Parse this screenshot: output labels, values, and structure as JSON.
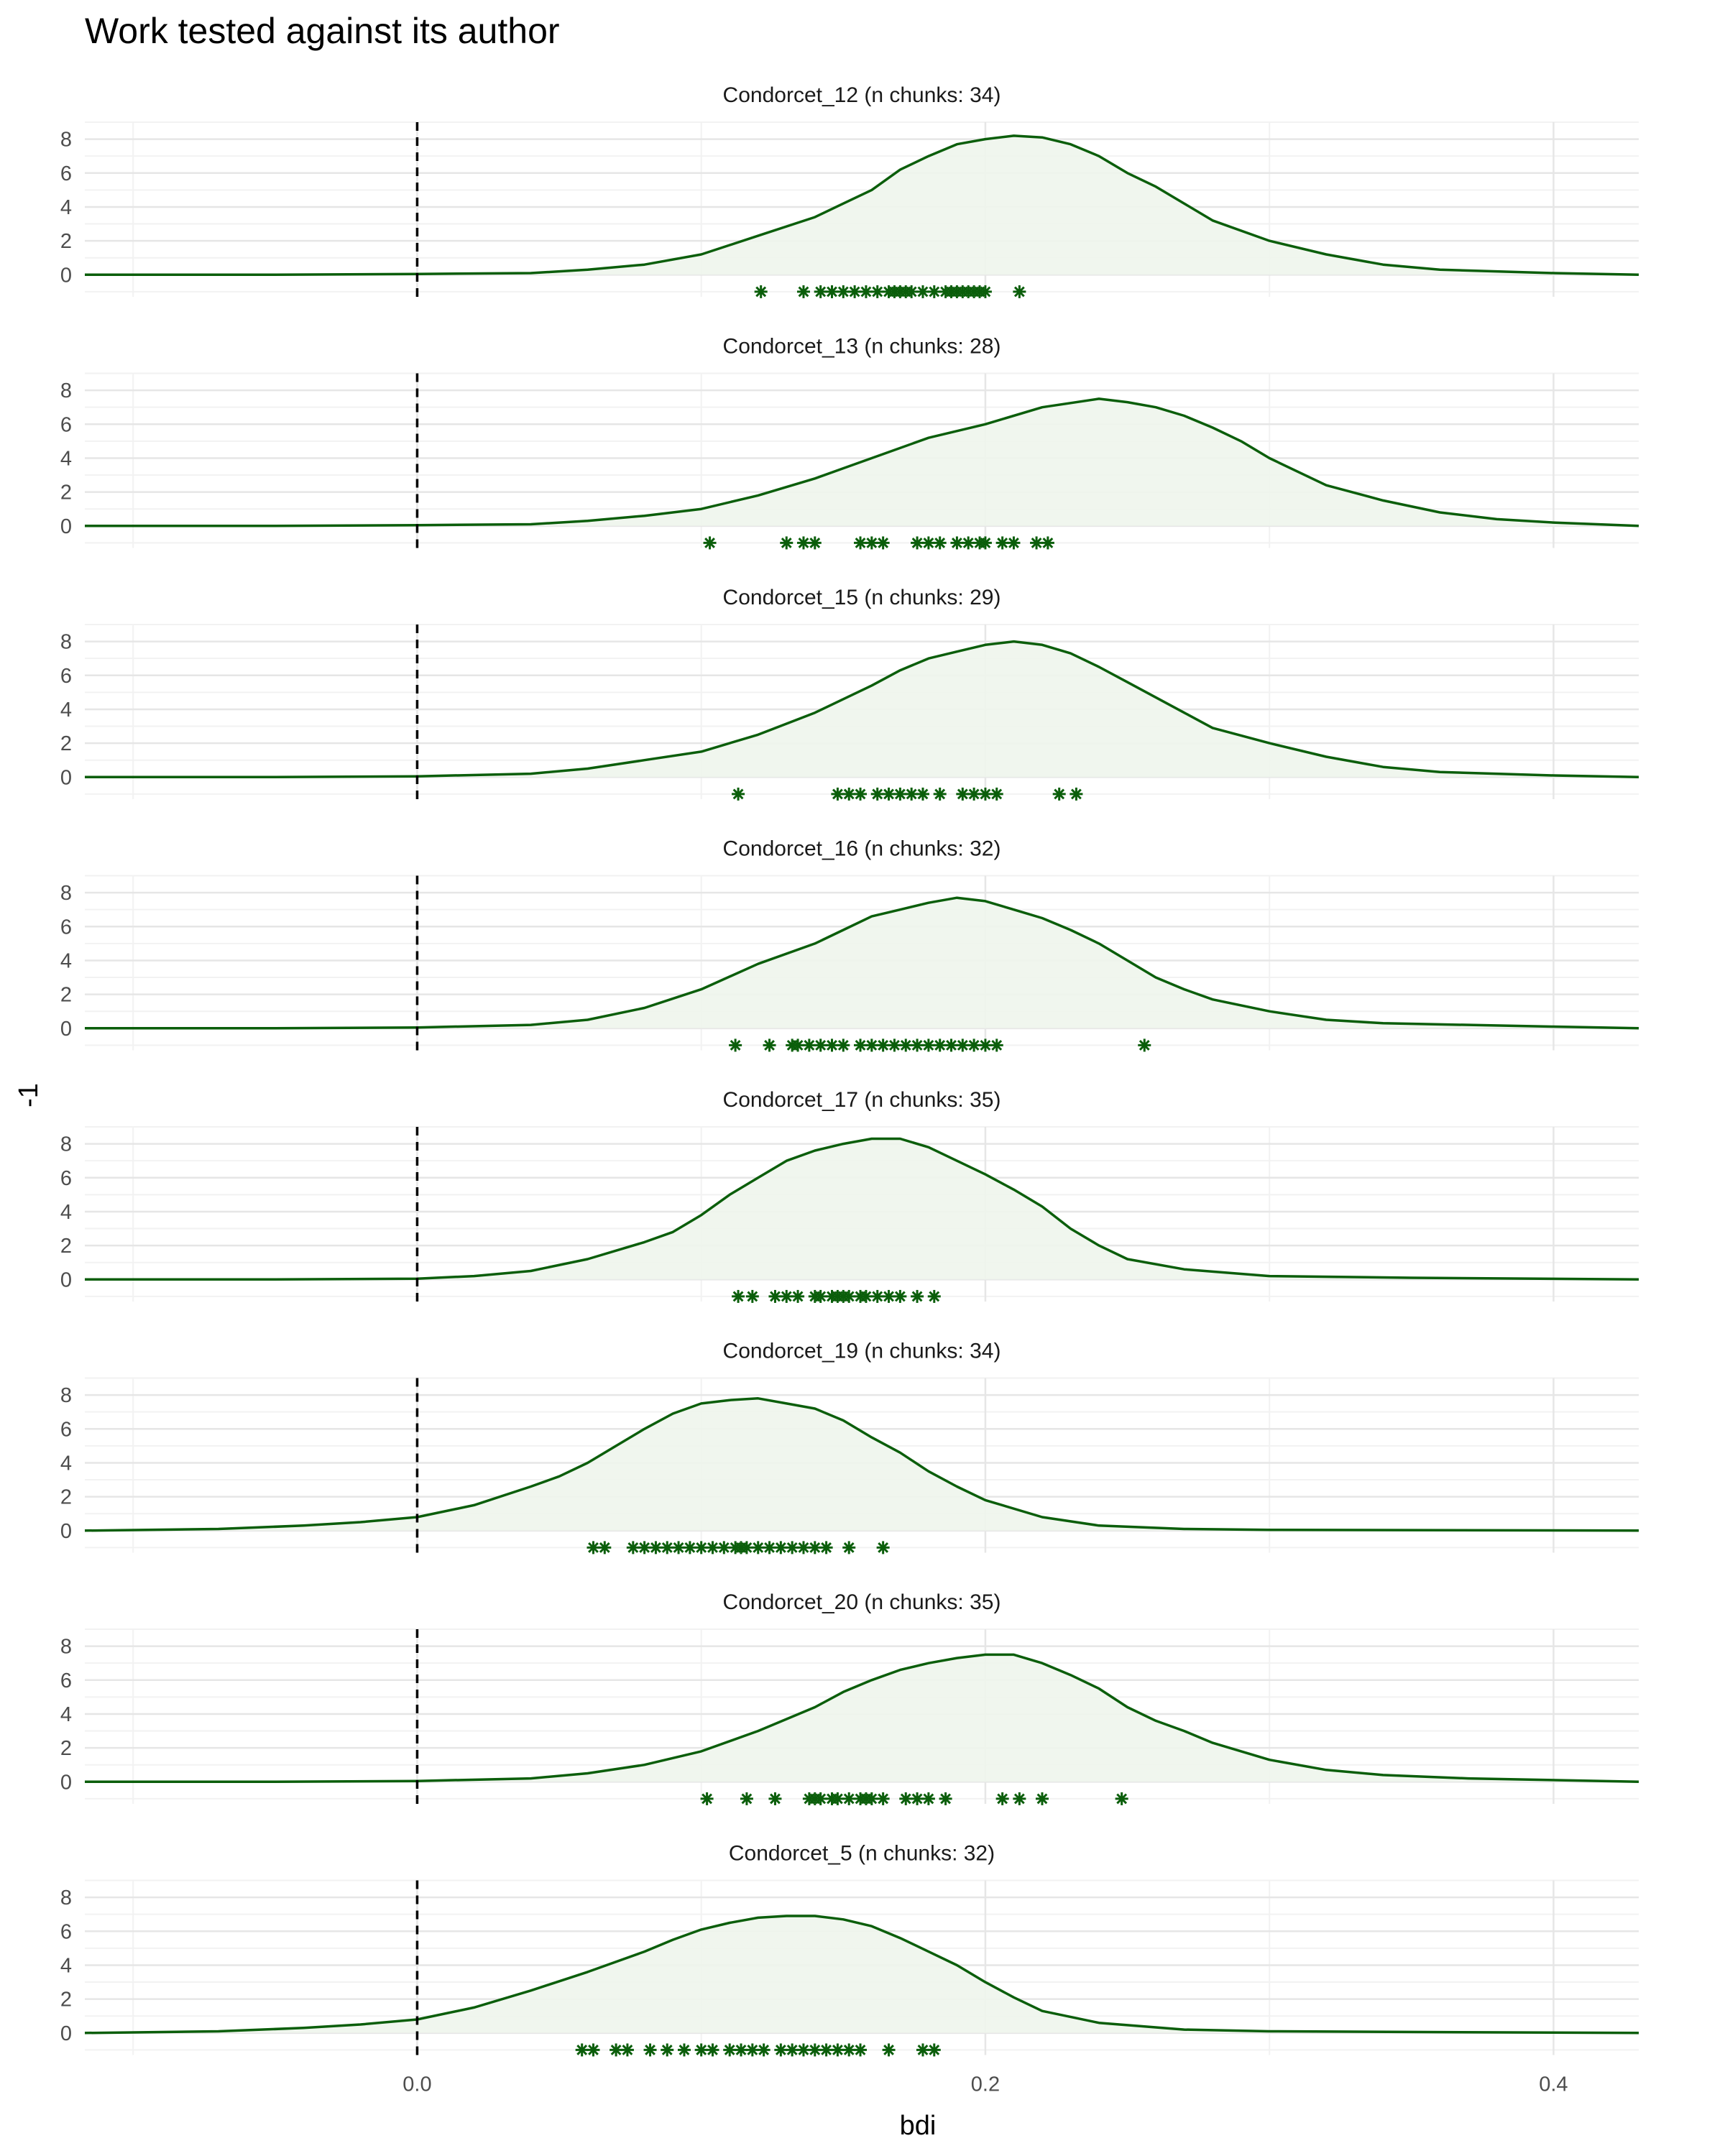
{
  "chart_data": {
    "type": "density",
    "title": "Work tested against its author",
    "xlabel": "bdi",
    "ylabel": "-1",
    "xlim": [
      -0.117,
      0.43
    ],
    "ylim": [
      -1.3,
      9.0
    ],
    "x_ticks": [
      0.0,
      0.2,
      0.4
    ],
    "x_tick_labels": [
      "0.0",
      "0.2",
      "0.4"
    ],
    "y_ticks": [
      0,
      2,
      4,
      6,
      8
    ],
    "y_tick_labels": [
      "0",
      "2",
      "4",
      "6",
      "8"
    ],
    "reference_line_x": 0.0,
    "grid": true,
    "color": "#0b5e0b",
    "fill_color": "#eef5ec",
    "panels": [
      {
        "label": "Condorcet_12 (n chunks: 34)",
        "density": [
          [
            -0.117,
            0
          ],
          [
            -0.05,
            0
          ],
          [
            0,
            0.05
          ],
          [
            0.04,
            0.1
          ],
          [
            0.06,
            0.3
          ],
          [
            0.08,
            0.6
          ],
          [
            0.1,
            1.2
          ],
          [
            0.12,
            2.3
          ],
          [
            0.14,
            3.4
          ],
          [
            0.15,
            4.2
          ],
          [
            0.16,
            5
          ],
          [
            0.17,
            6.2
          ],
          [
            0.18,
            7
          ],
          [
            0.19,
            7.7
          ],
          [
            0.2,
            8
          ],
          [
            0.21,
            8.2
          ],
          [
            0.22,
            8.1
          ],
          [
            0.23,
            7.7
          ],
          [
            0.24,
            7
          ],
          [
            0.25,
            6
          ],
          [
            0.26,
            5.2
          ],
          [
            0.27,
            4.2
          ],
          [
            0.28,
            3.2
          ],
          [
            0.3,
            2
          ],
          [
            0.32,
            1.2
          ],
          [
            0.34,
            0.6
          ],
          [
            0.36,
            0.3
          ],
          [
            0.4,
            0.1
          ],
          [
            0.43,
            0
          ]
        ],
        "points": [
          0.121,
          0.136,
          0.142,
          0.146,
          0.15,
          0.154,
          0.158,
          0.162,
          0.166,
          0.168,
          0.17,
          0.172,
          0.174,
          0.178,
          0.182,
          0.186,
          0.188,
          0.19,
          0.192,
          0.194,
          0.196,
          0.198,
          0.2,
          0.212
        ]
      },
      {
        "label": "Condorcet_13 (n chunks: 28)",
        "density": [
          [
            -0.117,
            0
          ],
          [
            -0.05,
            0
          ],
          [
            0,
            0.05
          ],
          [
            0.04,
            0.1
          ],
          [
            0.06,
            0.3
          ],
          [
            0.08,
            0.6
          ],
          [
            0.1,
            1
          ],
          [
            0.12,
            1.8
          ],
          [
            0.14,
            2.8
          ],
          [
            0.15,
            3.4
          ],
          [
            0.16,
            4
          ],
          [
            0.18,
            5.2
          ],
          [
            0.2,
            6
          ],
          [
            0.22,
            7
          ],
          [
            0.24,
            7.5
          ],
          [
            0.25,
            7.3
          ],
          [
            0.26,
            7
          ],
          [
            0.27,
            6.5
          ],
          [
            0.28,
            5.8
          ],
          [
            0.29,
            5
          ],
          [
            0.3,
            4
          ],
          [
            0.32,
            2.4
          ],
          [
            0.34,
            1.5
          ],
          [
            0.36,
            0.8
          ],
          [
            0.38,
            0.4
          ],
          [
            0.4,
            0.2
          ],
          [
            0.43,
            0
          ]
        ],
        "points": [
          0.103,
          0.13,
          0.136,
          0.14,
          0.156,
          0.16,
          0.164,
          0.176,
          0.18,
          0.184,
          0.19,
          0.194,
          0.198,
          0.2,
          0.206,
          0.21,
          0.218,
          0.222
        ]
      },
      {
        "label": "Condorcet_15 (n chunks: 29)",
        "density": [
          [
            -0.117,
            0
          ],
          [
            -0.05,
            0
          ],
          [
            0,
            0.05
          ],
          [
            0.04,
            0.2
          ],
          [
            0.06,
            0.5
          ],
          [
            0.08,
            1
          ],
          [
            0.1,
            1.5
          ],
          [
            0.12,
            2.5
          ],
          [
            0.14,
            3.8
          ],
          [
            0.15,
            4.6
          ],
          [
            0.16,
            5.4
          ],
          [
            0.17,
            6.3
          ],
          [
            0.18,
            7
          ],
          [
            0.19,
            7.4
          ],
          [
            0.2,
            7.8
          ],
          [
            0.21,
            8
          ],
          [
            0.22,
            7.8
          ],
          [
            0.23,
            7.3
          ],
          [
            0.24,
            6.5
          ],
          [
            0.25,
            5.6
          ],
          [
            0.26,
            4.7
          ],
          [
            0.27,
            3.8
          ],
          [
            0.28,
            2.9
          ],
          [
            0.3,
            2
          ],
          [
            0.32,
            1.2
          ],
          [
            0.34,
            0.6
          ],
          [
            0.36,
            0.3
          ],
          [
            0.4,
            0.1
          ],
          [
            0.43,
            0
          ]
        ],
        "points": [
          0.113,
          0.148,
          0.152,
          0.156,
          0.162,
          0.166,
          0.17,
          0.174,
          0.178,
          0.184,
          0.192,
          0.196,
          0.2,
          0.204,
          0.226,
          0.232
        ]
      },
      {
        "label": "Condorcet_16 (n chunks: 32)",
        "density": [
          [
            -0.117,
            0
          ],
          [
            -0.05,
            0
          ],
          [
            0,
            0.05
          ],
          [
            0.04,
            0.2
          ],
          [
            0.06,
            0.5
          ],
          [
            0.08,
            1.2
          ],
          [
            0.1,
            2.3
          ],
          [
            0.12,
            3.8
          ],
          [
            0.14,
            5
          ],
          [
            0.15,
            5.8
          ],
          [
            0.16,
            6.6
          ],
          [
            0.17,
            7
          ],
          [
            0.18,
            7.4
          ],
          [
            0.19,
            7.7
          ],
          [
            0.2,
            7.5
          ],
          [
            0.21,
            7
          ],
          [
            0.22,
            6.5
          ],
          [
            0.23,
            5.8
          ],
          [
            0.24,
            5
          ],
          [
            0.25,
            4
          ],
          [
            0.26,
            3
          ],
          [
            0.27,
            2.3
          ],
          [
            0.28,
            1.7
          ],
          [
            0.3,
            1
          ],
          [
            0.32,
            0.5
          ],
          [
            0.34,
            0.3
          ],
          [
            0.4,
            0.1
          ],
          [
            0.43,
            0
          ]
        ],
        "points": [
          0.112,
          0.124,
          0.132,
          0.134,
          0.138,
          0.142,
          0.146,
          0.15,
          0.156,
          0.16,
          0.164,
          0.168,
          0.172,
          0.176,
          0.18,
          0.184,
          0.188,
          0.192,
          0.196,
          0.2,
          0.204,
          0.256
        ]
      },
      {
        "label": "Condorcet_17 (n chunks: 35)",
        "density": [
          [
            -0.117,
            0
          ],
          [
            -0.05,
            0
          ],
          [
            0,
            0.05
          ],
          [
            0.02,
            0.2
          ],
          [
            0.04,
            0.5
          ],
          [
            0.06,
            1.2
          ],
          [
            0.08,
            2.2
          ],
          [
            0.09,
            2.8
          ],
          [
            0.1,
            3.8
          ],
          [
            0.11,
            5
          ],
          [
            0.12,
            6
          ],
          [
            0.13,
            7
          ],
          [
            0.14,
            7.6
          ],
          [
            0.15,
            8
          ],
          [
            0.16,
            8.3
          ],
          [
            0.17,
            8.3
          ],
          [
            0.18,
            7.8
          ],
          [
            0.19,
            7
          ],
          [
            0.2,
            6.2
          ],
          [
            0.21,
            5.3
          ],
          [
            0.22,
            4.3
          ],
          [
            0.23,
            3
          ],
          [
            0.24,
            2
          ],
          [
            0.25,
            1.2
          ],
          [
            0.27,
            0.6
          ],
          [
            0.3,
            0.2
          ],
          [
            0.35,
            0.1
          ],
          [
            0.43,
            0
          ]
        ],
        "points": [
          0.113,
          0.118,
          0.126,
          0.13,
          0.134,
          0.14,
          0.142,
          0.146,
          0.148,
          0.15,
          0.152,
          0.156,
          0.158,
          0.162,
          0.166,
          0.17,
          0.176,
          0.182
        ]
      },
      {
        "label": "Condorcet_19 (n chunks: 34)",
        "density": [
          [
            -0.117,
            0
          ],
          [
            -0.07,
            0.1
          ],
          [
            -0.04,
            0.3
          ],
          [
            -0.02,
            0.5
          ],
          [
            0,
            0.8
          ],
          [
            0.02,
            1.5
          ],
          [
            0.04,
            2.6
          ],
          [
            0.05,
            3.2
          ],
          [
            0.06,
            4
          ],
          [
            0.07,
            5
          ],
          [
            0.08,
            6
          ],
          [
            0.09,
            6.9
          ],
          [
            0.1,
            7.5
          ],
          [
            0.11,
            7.7
          ],
          [
            0.12,
            7.8
          ],
          [
            0.13,
            7.5
          ],
          [
            0.14,
            7.2
          ],
          [
            0.15,
            6.5
          ],
          [
            0.16,
            5.5
          ],
          [
            0.17,
            4.6
          ],
          [
            0.18,
            3.5
          ],
          [
            0.19,
            2.6
          ],
          [
            0.2,
            1.8
          ],
          [
            0.22,
            0.8
          ],
          [
            0.24,
            0.3
          ],
          [
            0.27,
            0.1
          ],
          [
            0.3,
            0.05
          ],
          [
            0.43,
            0
          ]
        ],
        "points": [
          0.062,
          0.066,
          0.076,
          0.08,
          0.084,
          0.088,
          0.092,
          0.096,
          0.1,
          0.104,
          0.108,
          0.112,
          0.114,
          0.116,
          0.12,
          0.124,
          0.128,
          0.132,
          0.136,
          0.14,
          0.144,
          0.152,
          0.164
        ]
      },
      {
        "label": "Condorcet_20 (n chunks: 35)",
        "density": [
          [
            -0.117,
            0
          ],
          [
            -0.05,
            0
          ],
          [
            0,
            0.05
          ],
          [
            0.04,
            0.2
          ],
          [
            0.06,
            0.5
          ],
          [
            0.08,
            1
          ],
          [
            0.1,
            1.8
          ],
          [
            0.12,
            3
          ],
          [
            0.14,
            4.4
          ],
          [
            0.15,
            5.3
          ],
          [
            0.16,
            6
          ],
          [
            0.17,
            6.6
          ],
          [
            0.18,
            7
          ],
          [
            0.19,
            7.3
          ],
          [
            0.2,
            7.5
          ],
          [
            0.21,
            7.5
          ],
          [
            0.22,
            7
          ],
          [
            0.23,
            6.3
          ],
          [
            0.24,
            5.5
          ],
          [
            0.25,
            4.4
          ],
          [
            0.26,
            3.6
          ],
          [
            0.27,
            3
          ],
          [
            0.28,
            2.3
          ],
          [
            0.3,
            1.3
          ],
          [
            0.32,
            0.7
          ],
          [
            0.34,
            0.4
          ],
          [
            0.37,
            0.2
          ],
          [
            0.43,
            0
          ]
        ],
        "points": [
          0.102,
          0.116,
          0.126,
          0.138,
          0.14,
          0.142,
          0.146,
          0.148,
          0.152,
          0.156,
          0.158,
          0.16,
          0.164,
          0.172,
          0.176,
          0.18,
          0.186,
          0.206,
          0.212,
          0.22,
          0.248
        ]
      },
      {
        "label": "Condorcet_5 (n chunks: 32)",
        "density": [
          [
            -0.117,
            0
          ],
          [
            -0.07,
            0.1
          ],
          [
            -0.04,
            0.3
          ],
          [
            -0.02,
            0.5
          ],
          [
            0,
            0.8
          ],
          [
            0.02,
            1.5
          ],
          [
            0.04,
            2.5
          ],
          [
            0.06,
            3.6
          ],
          [
            0.08,
            4.8
          ],
          [
            0.09,
            5.5
          ],
          [
            0.1,
            6.1
          ],
          [
            0.11,
            6.5
          ],
          [
            0.12,
            6.8
          ],
          [
            0.13,
            6.9
          ],
          [
            0.14,
            6.9
          ],
          [
            0.15,
            6.7
          ],
          [
            0.16,
            6.3
          ],
          [
            0.17,
            5.6
          ],
          [
            0.18,
            4.8
          ],
          [
            0.19,
            4
          ],
          [
            0.2,
            3
          ],
          [
            0.21,
            2.1
          ],
          [
            0.22,
            1.3
          ],
          [
            0.24,
            0.6
          ],
          [
            0.27,
            0.2
          ],
          [
            0.3,
            0.1
          ],
          [
            0.43,
            0
          ]
        ],
        "points": [
          0.058,
          0.062,
          0.07,
          0.074,
          0.082,
          0.088,
          0.094,
          0.1,
          0.104,
          0.11,
          0.114,
          0.118,
          0.122,
          0.128,
          0.132,
          0.136,
          0.14,
          0.144,
          0.148,
          0.152,
          0.156,
          0.166,
          0.178,
          0.182
        ]
      }
    ]
  }
}
